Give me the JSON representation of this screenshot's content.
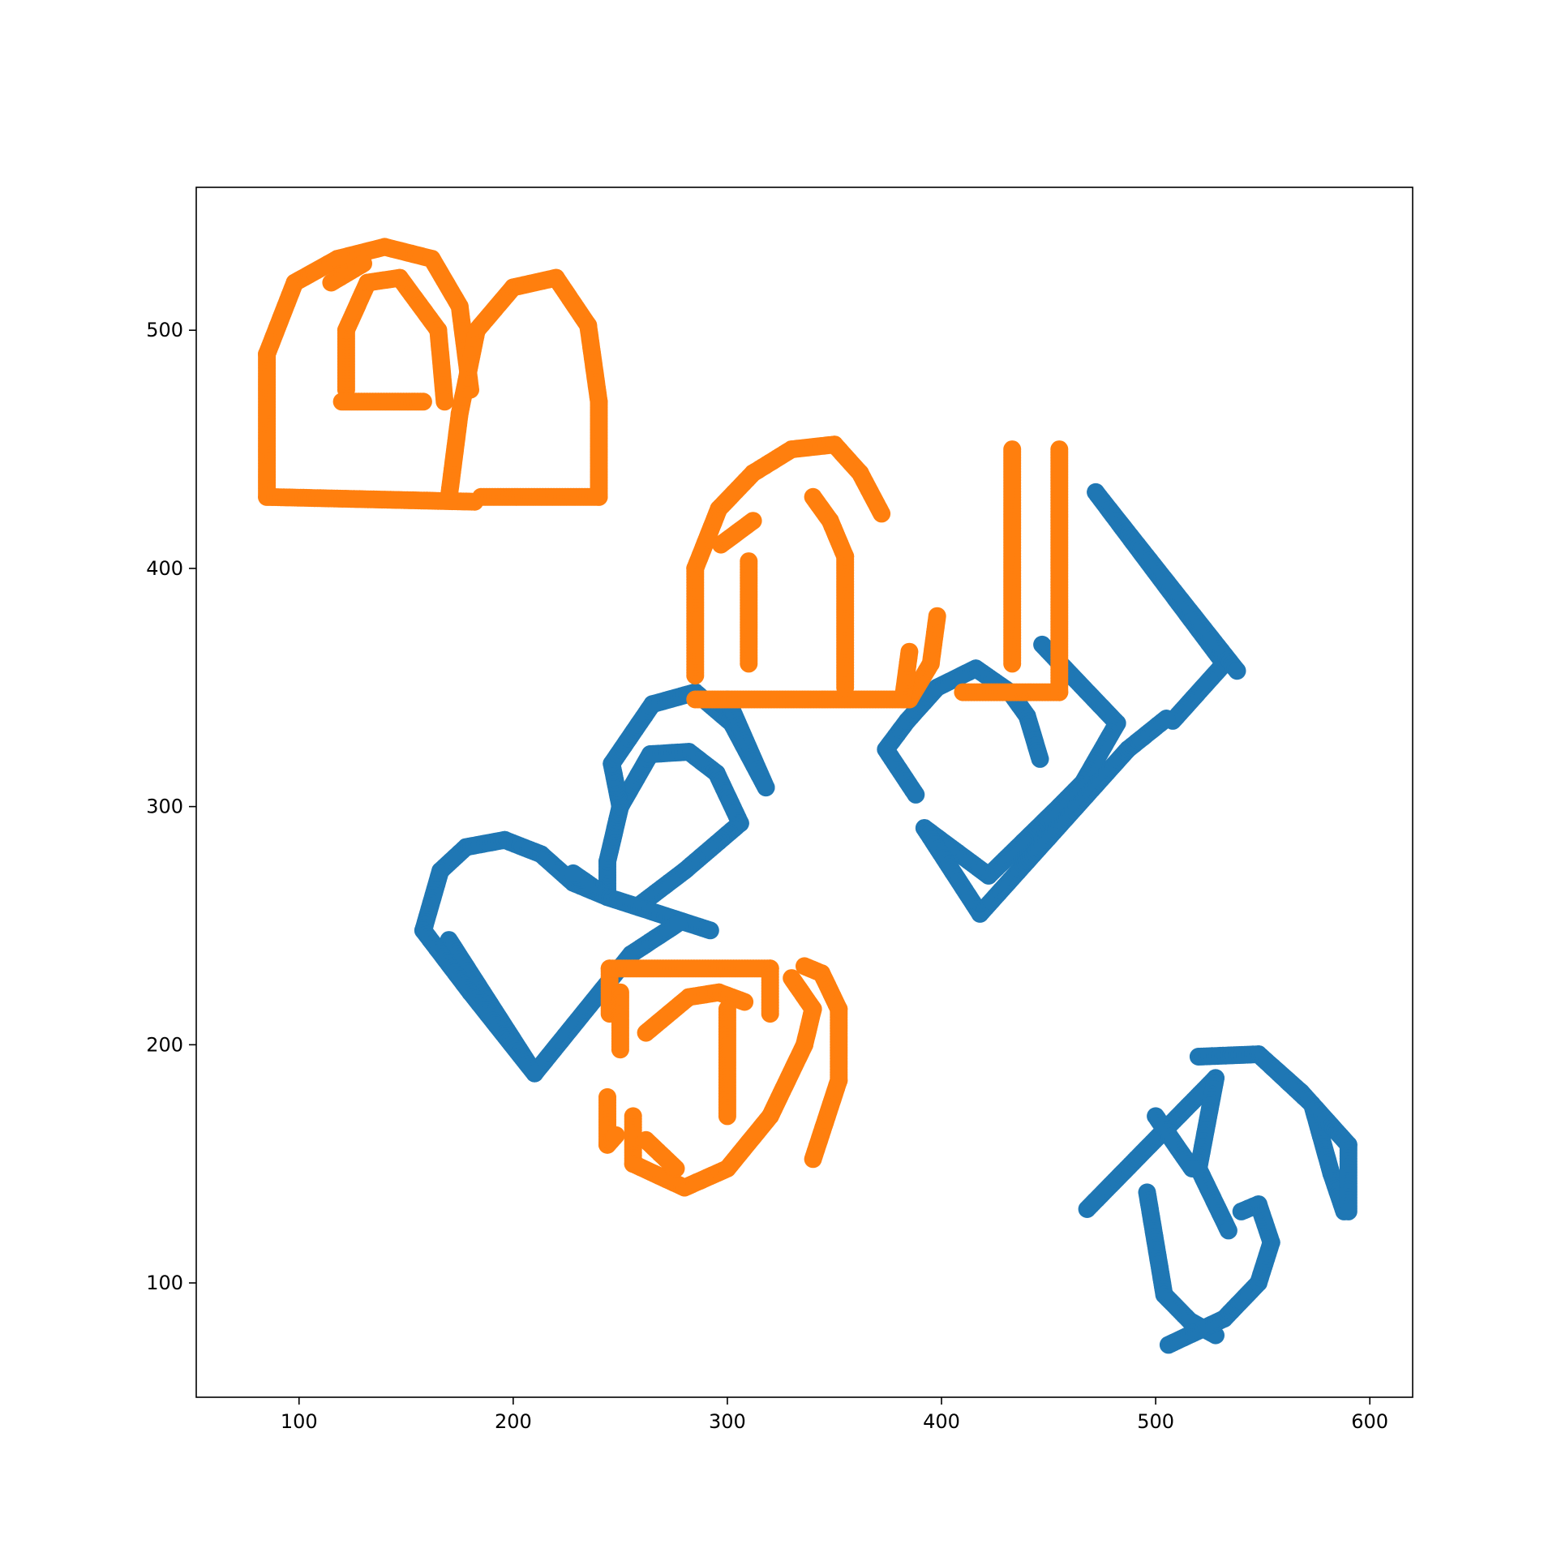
{
  "chart_data": {
    "type": "scatter",
    "title": "",
    "xlabel": "",
    "ylabel": "",
    "xlim": [
      52,
      620
    ],
    "ylim": [
      52,
      560
    ],
    "grid": false,
    "legend": "none",
    "xticks": [
      100,
      200,
      300,
      400,
      500,
      600
    ],
    "yticks": [
      100,
      200,
      300,
      400,
      500
    ],
    "xtick_labels": [
      "100",
      "200",
      "300",
      "400",
      "500",
      "600"
    ],
    "ytick_labels": [
      "100",
      "200",
      "300",
      "400",
      "500"
    ],
    "series": [
      {
        "color": "#1f77b4",
        "strokes": [
          [
            [
              166,
              273
            ],
            [
              178,
              283
            ],
            [
              196,
              286
            ],
            [
              213,
              280
            ],
            [
              228,
              268
            ],
            [
              244,
              262
            ],
            [
              244,
              277
            ],
            [
              250,
              300
            ],
            [
              264,
              322
            ],
            [
              282,
              323
            ],
            [
              295,
              314
            ],
            [
              306,
              293
            ],
            [
              280,
              273
            ],
            [
              258,
              258
            ]
          ],
          [
            [
              258,
              258
            ],
            [
              244,
              262
            ],
            [
              228,
              272
            ]
          ],
          [
            [
              244,
              262
            ],
            [
              292,
              248
            ]
          ],
          [
            [
              170,
              244
            ],
            [
              210,
              188
            ],
            [
              255,
              238
            ],
            [
              277,
              251
            ]
          ],
          [
            [
              166,
              273
            ],
            [
              158,
              248
            ],
            [
              180,
              222
            ],
            [
              210,
              188
            ]
          ],
          [
            [
              250,
              300
            ],
            [
              246,
              318
            ],
            [
              265,
              343
            ],
            [
              285,
              348
            ],
            [
              302,
              335
            ],
            [
              318,
              308
            ]
          ],
          [
            [
              300,
              345
            ],
            [
              318,
              308
            ]
          ],
          [
            [
              447,
              368
            ],
            [
              482,
              335
            ],
            [
              466,
              310
            ],
            [
              455,
              300
            ],
            [
              422,
              271
            ],
            [
              392,
              291
            ]
          ],
          [
            [
              472,
              432
            ],
            [
              532,
              360
            ],
            [
              508,
              336
            ]
          ],
          [
            [
              472,
              432
            ],
            [
              538,
              357
            ]
          ],
          [
            [
              392,
              291
            ],
            [
              418,
              255
            ],
            [
              487,
              324
            ],
            [
              505,
              337
            ]
          ],
          [
            [
              374,
              324
            ],
            [
              384,
              336
            ],
            [
              398,
              350
            ],
            [
              416,
              358
            ],
            [
              432,
              348
            ],
            [
              440,
              338
            ],
            [
              446,
              320
            ]
          ],
          [
            [
              374,
              324
            ],
            [
              388,
              305
            ]
          ],
          [
            [
              468,
              131
            ],
            [
              528,
              186
            ],
            [
              520,
              148
            ],
            [
              534,
              122
            ]
          ],
          [
            [
              500,
              170
            ],
            [
              517,
              148
            ]
          ],
          [
            [
              496,
              138
            ],
            [
              504,
              95
            ],
            [
              516,
              84
            ],
            [
              528,
              78
            ]
          ],
          [
            [
              506,
              74
            ],
            [
              532,
              85
            ],
            [
              548,
              100
            ],
            [
              554,
              117
            ],
            [
              548,
              133
            ],
            [
              540,
              130
            ]
          ],
          [
            [
              520,
              195
            ],
            [
              548,
              196
            ],
            [
              573,
              175
            ],
            [
              582,
              146
            ],
            [
              588,
              130
            ]
          ],
          [
            [
              548,
              196
            ],
            [
              568,
              180
            ],
            [
              590,
              158
            ],
            [
              590,
              130
            ]
          ]
        ]
      },
      {
        "color": "#ff7f0e",
        "strokes": [
          [
            [
              85,
              430
            ],
            [
              85,
              490
            ],
            [
              98,
              520
            ],
            [
              118,
              530
            ],
            [
              140,
              535
            ],
            [
              162,
              530
            ],
            [
              175,
              510
            ],
            [
              180,
              475
            ]
          ],
          [
            [
              85,
              430
            ],
            [
              182,
              428
            ]
          ],
          [
            [
              170,
              430
            ],
            [
              175,
              465
            ],
            [
              183,
              500
            ],
            [
              200,
              518
            ],
            [
              220,
              522
            ],
            [
              235,
              502
            ],
            [
              240,
              470
            ],
            [
              240,
              430
            ]
          ],
          [
            [
              185,
              430
            ],
            [
              240,
              430
            ]
          ],
          [
            [
              122,
              475
            ],
            [
              122,
              500
            ],
            [
              132,
              520
            ],
            [
              147,
              522
            ],
            [
              165,
              500
            ],
            [
              168,
              470
            ]
          ],
          [
            [
              120,
              470
            ],
            [
              158,
              470
            ]
          ],
          [
            [
              115,
              520
            ],
            [
              130,
              528
            ]
          ],
          [
            [
              285,
              355
            ],
            [
              285,
              400
            ],
            [
              296,
              425
            ],
            [
              312,
              440
            ],
            [
              330,
              450
            ],
            [
              350,
              452
            ],
            [
              362,
              440
            ],
            [
              372,
              423
            ]
          ],
          [
            [
              285,
              345
            ],
            [
              385,
              345
            ],
            [
              395,
              360
            ],
            [
              398,
              380
            ]
          ],
          [
            [
              355,
              350
            ],
            [
              355,
              405
            ],
            [
              348,
              420
            ],
            [
              340,
              430
            ]
          ],
          [
            [
              310,
              360
            ],
            [
              310,
              403
            ]
          ],
          [
            [
              297,
              410
            ],
            [
              312,
              420
            ]
          ],
          [
            [
              382,
              345
            ],
            [
              385,
              365
            ]
          ],
          [
            [
              410,
              348
            ],
            [
              455,
              348
            ]
          ],
          [
            [
              433,
              360
            ],
            [
              433,
              450
            ]
          ],
          [
            [
              455,
              348
            ],
            [
              455,
              450
            ]
          ],
          [
            [
              245,
              213
            ],
            [
              245,
              232
            ],
            [
              320,
              232
            ],
            [
              320,
              213
            ]
          ],
          [
            [
              250,
              222
            ],
            [
              250,
              198
            ]
          ],
          [
            [
              244,
              178
            ],
            [
              244,
              158
            ],
            [
              248,
              162
            ]
          ],
          [
            [
              256,
              170
            ],
            [
              256,
              150
            ],
            [
              280,
              140
            ],
            [
              300,
              148
            ],
            [
              320,
              170
            ],
            [
              336,
              200
            ],
            [
              340,
              215
            ],
            [
              330,
              228
            ]
          ],
          [
            [
              262,
              205
            ],
            [
              282,
              220
            ],
            [
              296,
              222
            ],
            [
              308,
              218
            ]
          ],
          [
            [
              300,
              215
            ],
            [
              300,
              170
            ]
          ],
          [
            [
              276,
              148
            ],
            [
              262,
              160
            ]
          ],
          [
            [
              340,
              152
            ],
            [
              352,
              185
            ],
            [
              352,
              215
            ],
            [
              344,
              230
            ],
            [
              336,
              233
            ]
          ]
        ]
      }
    ]
  }
}
